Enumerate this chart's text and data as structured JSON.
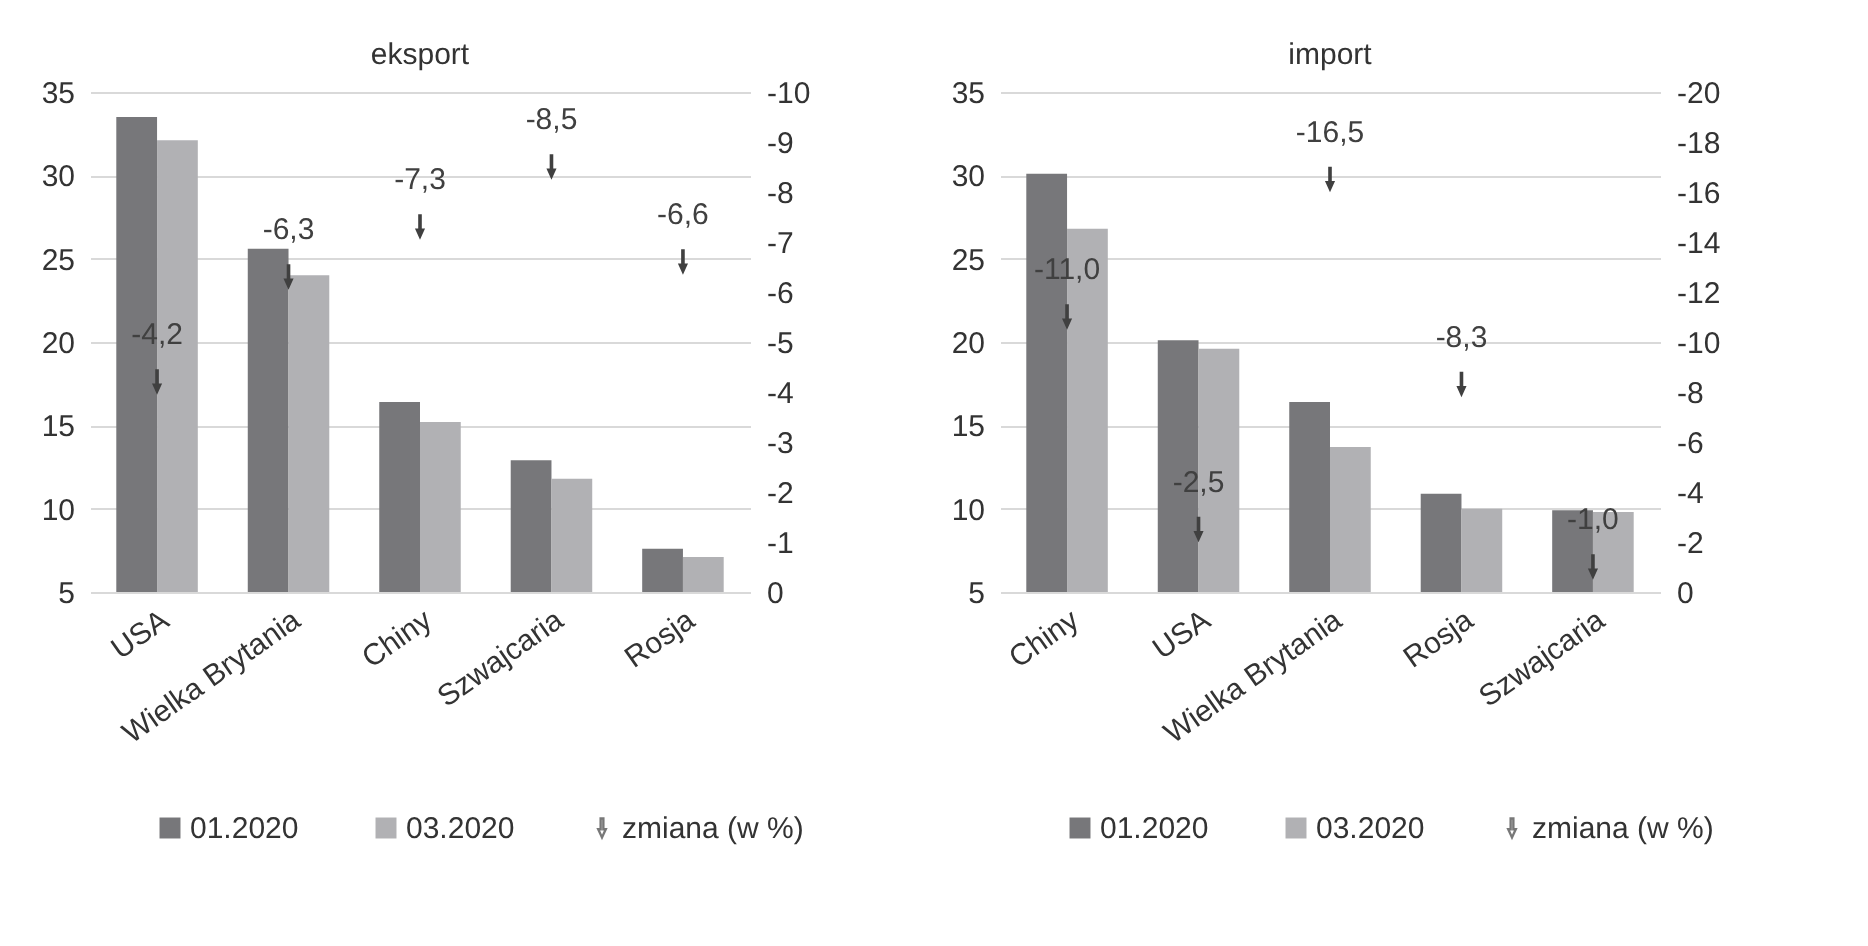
{
  "chart_data": [
    {
      "type": "bar",
      "title": "eksport",
      "categories": [
        "USA",
        "Wielka Brytania",
        "Chiny",
        "Szwajcaria",
        "Rosja"
      ],
      "series": [
        {
          "name": "01.2020",
          "color": "#77777a",
          "values": [
            33.5,
            25.6,
            16.4,
            12.9,
            7.6
          ]
        },
        {
          "name": "03.2020",
          "color": "#b1b1b4",
          "values": [
            32.1,
            24.0,
            15.2,
            11.8,
            7.1
          ]
        },
        {
          "name": "zmiana (w %)",
          "type": "scatter",
          "axis": "y2",
          "color": "#404040",
          "values": [
            -4.2,
            -6.3,
            -7.3,
            -8.5,
            -6.6
          ],
          "value_labels": [
            "-4,2",
            "-6,3",
            "-7,3",
            "-8,5",
            "-6,6"
          ]
        }
      ],
      "ylim": [
        5,
        35
      ],
      "yticks": [
        5,
        10,
        15,
        20,
        25,
        30,
        35
      ],
      "y2lim": [
        0,
        -10
      ],
      "y2ticks": [
        0,
        -1,
        -2,
        -3,
        -4,
        -5,
        -6,
        -7,
        -8,
        -9,
        -10
      ],
      "grid": "y",
      "legend": "bottom"
    },
    {
      "type": "bar",
      "title": "import",
      "categories": [
        "Chiny",
        "USA",
        "Wielka Brytania",
        "Rosja",
        "Szwajcaria"
      ],
      "series": [
        {
          "name": "01.2020",
          "color": "#77777a",
          "values": [
            30.1,
            20.1,
            16.4,
            10.9,
            9.9
          ]
        },
        {
          "name": "03.2020",
          "color": "#b1b1b4",
          "values": [
            26.8,
            19.6,
            13.7,
            10.0,
            9.8
          ]
        },
        {
          "name": "zmiana (w %)",
          "type": "scatter",
          "axis": "y2",
          "color": "#404040",
          "values": [
            -11.0,
            -2.5,
            -16.5,
            -8.3,
            -1.0
          ],
          "value_labels": [
            "-11,0",
            "-2,5",
            "-16,5",
            "-8,3",
            "-1,0"
          ]
        }
      ],
      "ylim": [
        5,
        35
      ],
      "yticks": [
        5,
        10,
        15,
        20,
        25,
        30,
        35
      ],
      "y2lim": [
        0,
        -20
      ],
      "y2ticks": [
        0,
        -2,
        -4,
        -6,
        -8,
        -10,
        -12,
        -14,
        -16,
        -18,
        -20
      ],
      "grid": "y",
      "legend": "bottom"
    }
  ]
}
